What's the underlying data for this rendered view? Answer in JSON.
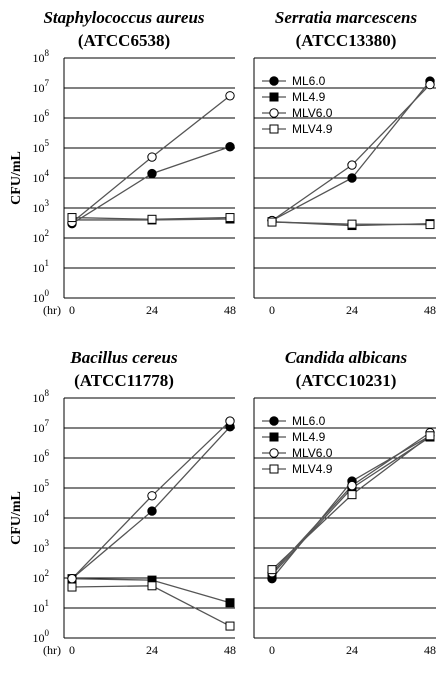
{
  "colors": {
    "line": "#555555",
    "grid": "#000000",
    "filled_marker": "#000000",
    "open_marker_fill": "#ffffff",
    "axis": "#000000"
  },
  "chart_data": [
    {
      "type": "line",
      "title": "Staphylococcus aureus",
      "subtitle": "(ATCC6538)",
      "ylabel": "CFU/mL",
      "x_unit_label": "(hr)",
      "x": [
        0,
        24,
        48
      ],
      "x_tick_labels": [
        "0",
        "24",
        "48"
      ],
      "y_scale": "log",
      "ylim": [
        1,
        100000000
      ],
      "y_tick_labels": [
        "10^0",
        "10^1",
        "10^2",
        "10^3",
        "10^4",
        "10^5",
        "10^6",
        "10^7",
        "10^8"
      ],
      "grid": "horizontal",
      "legend": null,
      "series": [
        {
          "name": "ML6.0",
          "marker": "filled-circle",
          "values": [
            300,
            14000,
            110000
          ]
        },
        {
          "name": "ML4.9",
          "marker": "filled-square",
          "values": [
            400,
            400,
            430
          ]
        },
        {
          "name": "MLV6.0",
          "marker": "open-circle",
          "values": [
            330,
            50000,
            5500000
          ]
        },
        {
          "name": "MLV4.9",
          "marker": "open-square",
          "values": [
            480,
            420,
            480
          ]
        }
      ]
    },
    {
      "type": "line",
      "title": "Serratia marcescens",
      "subtitle": "(ATCC13380)",
      "ylabel": "",
      "x_unit_label": "",
      "x": [
        0,
        24,
        48
      ],
      "x_tick_labels": [
        "0",
        "24",
        "48"
      ],
      "y_scale": "log",
      "ylim": [
        1,
        100000000
      ],
      "grid": "horizontal",
      "legend": "top-left",
      "series": [
        {
          "name": "ML6.0",
          "marker": "filled-circle",
          "values": [
            380,
            10000,
            17000000
          ]
        },
        {
          "name": "ML4.9",
          "marker": "filled-square",
          "values": [
            350,
            260,
            300
          ]
        },
        {
          "name": "MLV6.0",
          "marker": "open-circle",
          "values": [
            380,
            27000,
            13000000
          ]
        },
        {
          "name": "MLV4.9",
          "marker": "open-square",
          "values": [
            340,
            290,
            280
          ]
        }
      ]
    },
    {
      "type": "line",
      "title": "Bacillus cereus",
      "subtitle": "(ATCC11778)",
      "ylabel": "CFU/mL",
      "x_unit_label": "(hr)",
      "x": [
        0,
        24,
        48
      ],
      "x_tick_labels": [
        "0",
        "24",
        "48"
      ],
      "y_scale": "log",
      "ylim": [
        1,
        100000000
      ],
      "y_tick_labels": [
        "10^0",
        "10^1",
        "10^2",
        "10^3",
        "10^4",
        "10^5",
        "10^6",
        "10^7",
        "10^8"
      ],
      "grid": "horizontal",
      "legend": null,
      "series": [
        {
          "name": "ML6.0",
          "marker": "filled-circle",
          "values": [
            95,
            17000,
            11000000
          ]
        },
        {
          "name": "ML4.9",
          "marker": "filled-square",
          "values": [
            95,
            85,
            15
          ]
        },
        {
          "name": "MLV6.0",
          "marker": "open-circle",
          "values": [
            95,
            55000,
            17000000
          ]
        },
        {
          "name": "MLV4.9",
          "marker": "open-square",
          "values": [
            50,
            55,
            2.5
          ]
        }
      ]
    },
    {
      "type": "line",
      "title": "Candida albicans",
      "subtitle": "(ATCC10231)",
      "ylabel": "",
      "x_unit_label": "",
      "x": [
        0,
        24,
        48
      ],
      "x_tick_labels": [
        "0",
        "24",
        "48"
      ],
      "y_scale": "log",
      "ylim": [
        1,
        100000000
      ],
      "grid": "horizontal",
      "legend": "top-left",
      "series": [
        {
          "name": "ML6.0",
          "marker": "filled-circle",
          "values": [
            95,
            170000,
            5500000
          ]
        },
        {
          "name": "ML4.9",
          "marker": "filled-square",
          "values": [
            130,
            100000,
            5000000
          ]
        },
        {
          "name": "MLV6.0",
          "marker": "open-circle",
          "values": [
            150,
            120000,
            7000000
          ]
        },
        {
          "name": "MLV4.9",
          "marker": "open-square",
          "values": [
            190,
            60000,
            5500000
          ]
        }
      ]
    }
  ]
}
